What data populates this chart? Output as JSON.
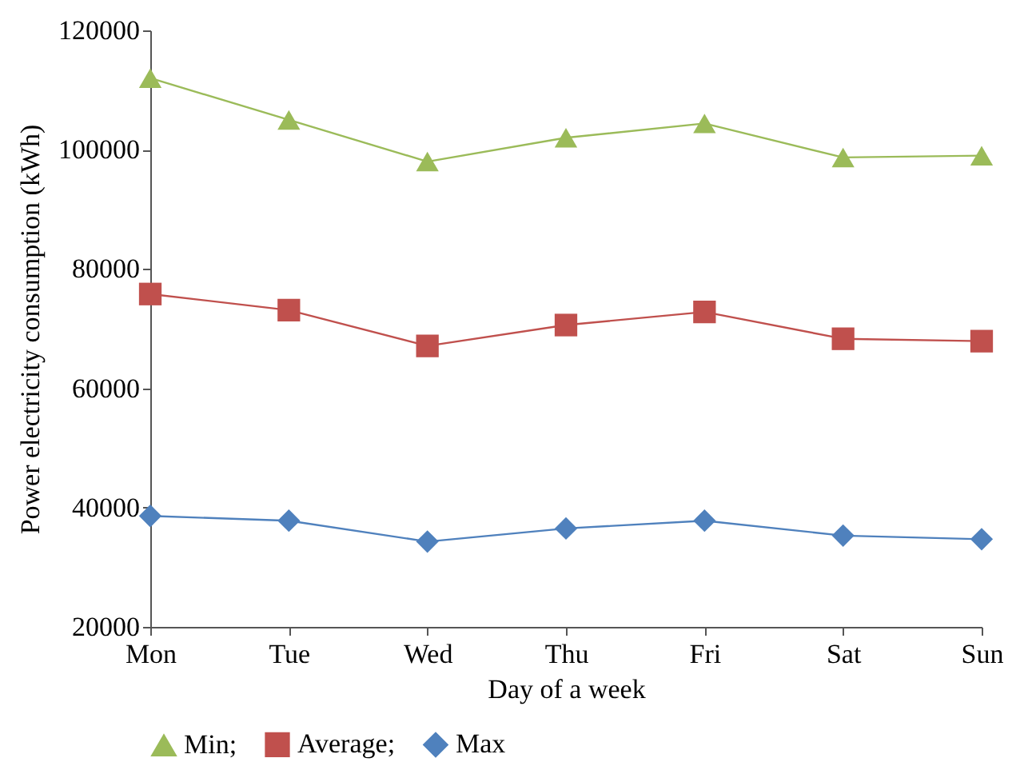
{
  "chart_data": {
    "type": "line",
    "xlabel": "Day of a week",
    "ylabel": "Power electricity consumption (kWh)",
    "categories": [
      "Mon",
      "Tue",
      "Wed",
      "Thu",
      "Fri",
      "Sat",
      "Sun"
    ],
    "series": [
      {
        "name": "Min;",
        "color": "#9bbb59",
        "marker": "triangle",
        "values": [
          112000,
          105000,
          98000,
          102000,
          104400,
          98700,
          99000
        ]
      },
      {
        "name": "Average;",
        "color": "#c0504d",
        "marker": "square",
        "values": [
          75800,
          73100,
          67100,
          70600,
          72800,
          68300,
          67900
        ]
      },
      {
        "name": "Max",
        "color": "#4f81bd",
        "marker": "diamond",
        "values": [
          38600,
          37800,
          34300,
          36500,
          37800,
          35300,
          34700
        ]
      }
    ],
    "ylim": [
      20000,
      120000
    ],
    "yticks": [
      20000,
      40000,
      60000,
      80000,
      100000,
      120000
    ],
    "grid": false,
    "legend": "bottom",
    "line_style": "solid"
  }
}
